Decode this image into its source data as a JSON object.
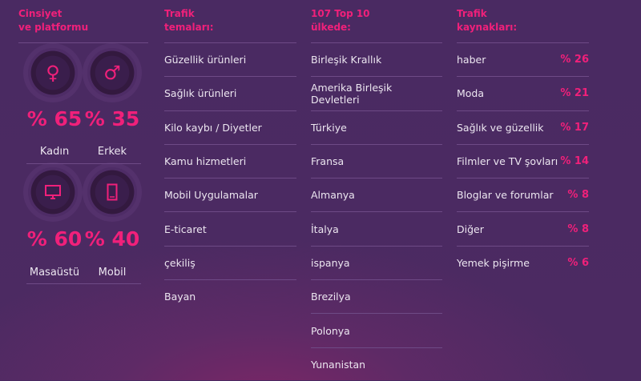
{
  "gender_platform": {
    "title_line1": "Cinsiyet",
    "title_line2": "ve platformu",
    "female": {
      "icon": "female-icon",
      "percent": "% 65",
      "label": "Kadın"
    },
    "male": {
      "icon": "male-icon",
      "percent": "% 35",
      "label": "Erkek"
    },
    "desktop": {
      "icon": "desktop-icon",
      "percent": "% 60",
      "label": "Masaüstü"
    },
    "mobile": {
      "icon": "mobile-icon",
      "percent": "% 40",
      "label": "Mobil"
    }
  },
  "themes": {
    "title_line1": "Trafik",
    "title_line2": "temaları:",
    "items": [
      "Güzellik ürünleri",
      "Sağlık ürünleri",
      "Kilo kaybı / Diyetler",
      "Kamu hizmetleri",
      "Mobil Uygulamalar",
      "E-ticaret",
      "çekiliş",
      "Bayan"
    ]
  },
  "countries": {
    "title_line1": "107 Top 10",
    "title_line2": "ülkede:",
    "items": [
      "Birleşik Krallık",
      "Amerika Birleşik Devletleri",
      "Türkiye",
      "Fransa",
      "Almanya",
      "İtalya",
      "ispanya",
      "Brezilya",
      "Polonya",
      "Yunanistan"
    ]
  },
  "sources": {
    "title_line1": "Trafik",
    "title_line2": "kaynakları:",
    "items": [
      {
        "label": "haber",
        "value": "% 26"
      },
      {
        "label": "Moda",
        "value": "% 21"
      },
      {
        "label": "Sağlık ve güzellik",
        "value": "% 17"
      },
      {
        "label": "Filmler ve TV şovları",
        "value": "% 14"
      },
      {
        "label": "Bloglar ve forumlar",
        "value": "% 8"
      },
      {
        "label": "Diğer",
        "value": "% 8"
      },
      {
        "label": "Yemek pişirme",
        "value": "% 6"
      }
    ]
  },
  "colors": {
    "accent": "#f0207a",
    "background": "#4a2a62"
  }
}
